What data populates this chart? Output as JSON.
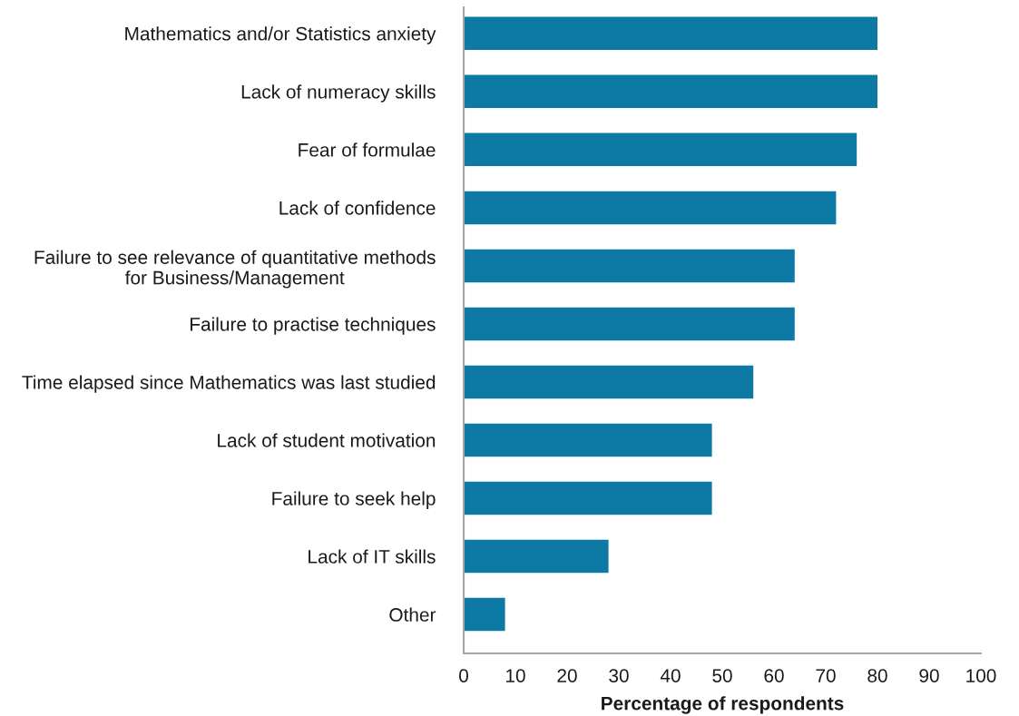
{
  "chart_data": {
    "type": "bar",
    "orientation": "horizontal",
    "xlabel": "Percentage of respondents",
    "categories": [
      "Mathematics and/or Statistics anxiety",
      "Lack of numeracy skills",
      "Fear of formulae",
      "Lack of confidence",
      "Failure to see relevance of quantitative methods\nfor Business/Management",
      "Failure to practise techniques",
      "Time elapsed since Mathematics was last studied",
      "Lack of student motivation",
      "Failure to seek help",
      "Lack of IT skills",
      "Other"
    ],
    "values": [
      80,
      80,
      76,
      72,
      64,
      64,
      56,
      48,
      48,
      28,
      8
    ],
    "color": "#0d7aa6",
    "xlim": [
      0,
      100
    ],
    "xticks": [
      0,
      10,
      20,
      30,
      40,
      50,
      60,
      70,
      80,
      90,
      100
    ]
  }
}
